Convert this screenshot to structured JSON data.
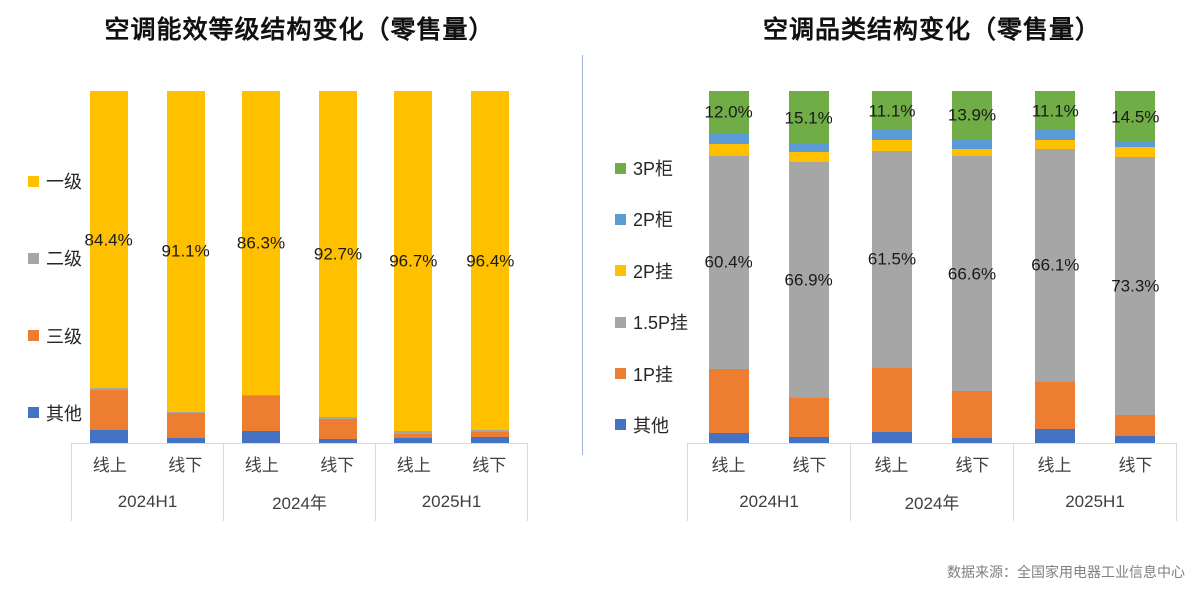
{
  "page": {
    "source": "数据来源：全国家用电器工业信息中心"
  },
  "chart_data": [
    {
      "type": "bar",
      "stacked": true,
      "unit": "%",
      "ylim": [
        0,
        100
      ],
      "title": "空调能效等级结构变化（零售量）",
      "group_labels": [
        "2024H1",
        "2024年",
        "2025H1"
      ],
      "bar_sublabels": [
        "线上",
        "线下"
      ],
      "legend_top_to_bottom": [
        "一级",
        "二级",
        "三级",
        "其他"
      ],
      "legend_position": "left",
      "series_bottom_up": [
        {
          "name": "其他",
          "color": "#4472C4",
          "values": [
            3.7,
            1.4,
            3.3,
            1.2,
            1.3,
            1.7
          ]
        },
        {
          "name": "三级",
          "color": "#ED7D31",
          "values": [
            11.4,
            7.2,
            10.0,
            5.6,
            1.4,
            1.3
          ]
        },
        {
          "name": "二级",
          "color": "#A6A6A6",
          "values": [
            0.5,
            0.3,
            0.4,
            0.5,
            0.6,
            0.6
          ]
        },
        {
          "name": "一级",
          "color": "#FFC000",
          "values": [
            84.4,
            91.1,
            86.3,
            92.7,
            96.7,
            96.4
          ],
          "show_labels": true,
          "data_labels": [
            "84.4%",
            "91.1%",
            "86.3%",
            "92.7%",
            "96.7%",
            "96.4%"
          ]
        }
      ]
    },
    {
      "type": "bar",
      "stacked": true,
      "unit": "%",
      "ylim": [
        0,
        100
      ],
      "title": "空调品类结构变化（零售量）",
      "group_labels": [
        "2024H1",
        "2024年",
        "2025H1"
      ],
      "bar_sublabels": [
        "线上",
        "线下"
      ],
      "legend_top_to_bottom": [
        "3P柜",
        "2P柜",
        "2P挂",
        "1.5P挂",
        "1P挂",
        "其他"
      ],
      "legend_position": "left",
      "series_bottom_up": [
        {
          "name": "其他",
          "color": "#4472C4",
          "values": [
            2.8,
            1.7,
            3.1,
            1.4,
            4.0,
            1.9
          ]
        },
        {
          "name": "1P挂",
          "color": "#ED7D31",
          "values": [
            18.3,
            11.2,
            18.3,
            13.4,
            13.4,
            6.0
          ]
        },
        {
          "name": "1.5P挂",
          "color": "#A6A6A6",
          "values": [
            60.4,
            66.9,
            61.5,
            66.6,
            66.1,
            73.3
          ],
          "show_labels": true,
          "data_labels": [
            "60.4%",
            "66.9%",
            "61.5%",
            "66.6%",
            "66.1%",
            "73.3%"
          ]
        },
        {
          "name": "2P挂",
          "color": "#FFC000",
          "values": [
            3.4,
            2.8,
            3.2,
            2.2,
            2.6,
            2.8
          ]
        },
        {
          "name": "2P柜",
          "color": "#5B9BD5",
          "values": [
            3.1,
            2.3,
            2.8,
            2.5,
            2.8,
            1.5
          ]
        },
        {
          "name": "3P柜",
          "color": "#70AD47",
          "values": [
            12.0,
            15.1,
            11.1,
            13.9,
            11.1,
            14.5
          ],
          "show_labels": true,
          "data_labels": [
            "12.0%",
            "15.1%",
            "11.1%",
            "13.9%",
            "11.1%",
            "14.5%"
          ]
        }
      ]
    }
  ]
}
